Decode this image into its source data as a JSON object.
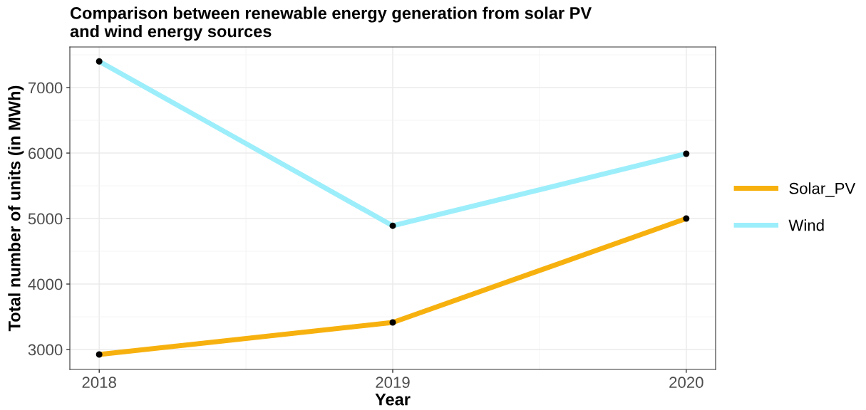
{
  "chart_data": {
    "type": "line",
    "title": "Comparison between renewable energy generation from solar PV\nand wind energy sources",
    "xlabel": "Year",
    "ylabel": "Total number of units (in MWh)",
    "x": [
      2018,
      2019,
      2020
    ],
    "series": [
      {
        "name": "Solar_PV",
        "color": "#f7b10f",
        "values": [
          2924,
          3413,
          5000
        ]
      },
      {
        "name": "Wind",
        "color": "#9ceefb",
        "values": [
          7400,
          4890,
          5990
        ]
      }
    ],
    "xlim": [
      2017.9,
      2020.1
    ],
    "xticks": [
      2018,
      2019,
      2020
    ],
    "ylim": [
      2696,
      7620
    ],
    "yticks": [
      3000,
      4000,
      5000,
      6000,
      7000
    ],
    "grid": true,
    "legend": "right",
    "marker": "circle",
    "line_style": "solid"
  }
}
